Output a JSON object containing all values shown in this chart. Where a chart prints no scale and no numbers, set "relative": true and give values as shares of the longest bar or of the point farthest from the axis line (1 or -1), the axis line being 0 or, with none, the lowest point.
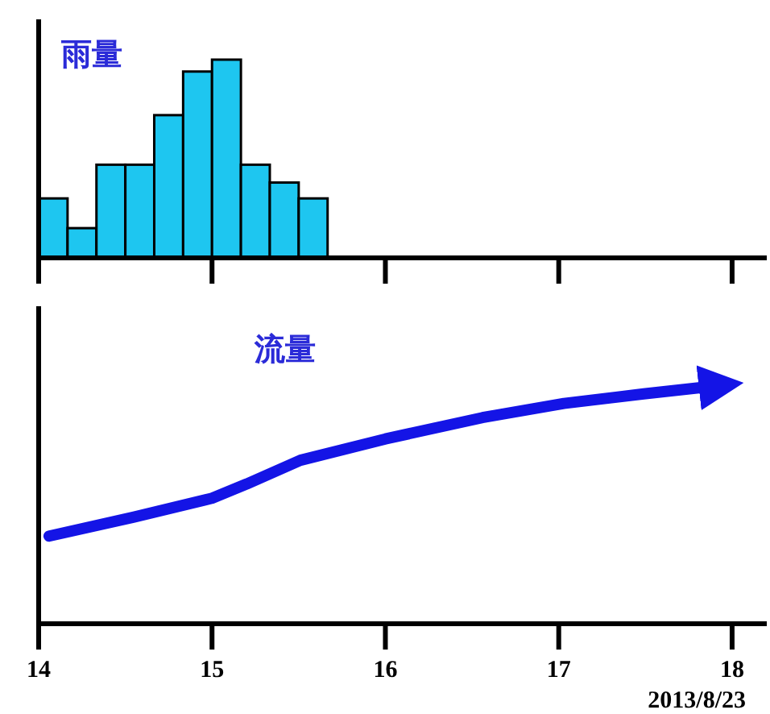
{
  "chart_data": [
    {
      "type": "bar",
      "title": "雨量",
      "categories": [
        null,
        null,
        null,
        null,
        null,
        null,
        null,
        null,
        null,
        null
      ],
      "values": [
        0.3,
        0.15,
        0.47,
        0.47,
        0.72,
        0.94,
        1,
        0.47,
        0.38,
        0.3
      ],
      "relative": true,
      "color": "#1ec6f0",
      "tick_labels": false
    },
    {
      "type": "line",
      "title": "流量",
      "xlabel": "2013/8/23",
      "relative": true,
      "xlim": [
        14,
        18.2
      ],
      "xticks": [
        14,
        15,
        16,
        17,
        18
      ],
      "tick_labels": "x",
      "series": [
        {
          "color": "#1414e6",
          "x": [
            14.06,
            14.55,
            15.0,
            15.2,
            15.51,
            16.0,
            16.56,
            17.03,
            17.49,
            17.86
          ],
          "values": [
            0.37,
            0.45,
            0.53,
            0.59,
            0.69,
            0.78,
            0.87,
            0.93,
            0.97,
            1
          ]
        }
      ]
    }
  ]
}
